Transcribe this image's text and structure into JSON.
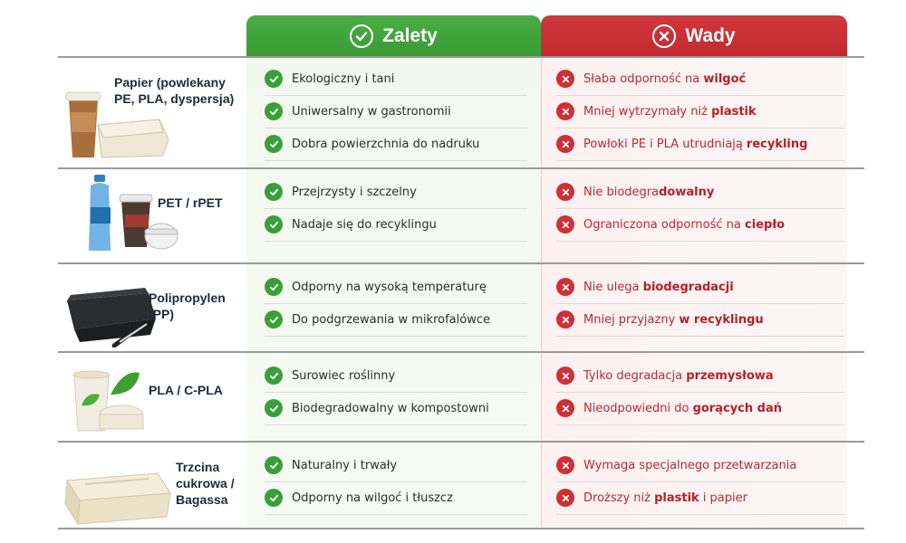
{
  "header": {
    "pros_label": "Zalety",
    "cons_label": "Wady",
    "pros_color": "#3ea338",
    "cons_color": "#c9313a"
  },
  "rows": [
    {
      "material": "Papier (powlekany PE, PLA, dyspersja)",
      "label_lines": [
        "Papier (powlekany",
        "PE, PLA, dyspersja)"
      ],
      "illustration": "paper-cup-and-box",
      "pros": [
        "Ekologiczny i tani",
        "Uniwersalny w gastronomii",
        "Dobra powierzchnia do nadruku"
      ],
      "cons": [
        {
          "pre": "Słaba odporność na ",
          "bold": "wilgoć",
          "post": ""
        },
        {
          "pre": "Mniej wytrzymały niż ",
          "bold": "plastik",
          "post": ""
        },
        {
          "pre": "Powłoki PE i PLA utrudniają ",
          "bold": "recykling",
          "post": ""
        }
      ]
    },
    {
      "material": "PET / rPET",
      "label_lines": [
        "PET / rPET"
      ],
      "illustration": "bottle-and-cups",
      "pros": [
        "Przejrzysty i szczelny",
        "Nadaje się do recyklingu"
      ],
      "cons": [
        {
          "pre": "Nie biodegra",
          "bold": "dowalny",
          "post": ""
        },
        {
          "pre": "Ograniczona odporność na ",
          "bold": "ciepło",
          "post": ""
        }
      ]
    },
    {
      "material": "Polipropylen (PP)",
      "label_lines": [
        "Polipropylen",
        "(PP)"
      ],
      "illustration": "black-container-and-fork",
      "pros": [
        "Odporny na wysoką temperaturę",
        "Do podgrzewania w mikrofalówce"
      ],
      "cons": [
        {
          "pre": "Nie ulega ",
          "bold": "biodegradacji",
          "post": ""
        },
        {
          "pre": "Mniej przyjazny ",
          "bold": "w recyklingu",
          "post": ""
        }
      ]
    },
    {
      "material": "PLA / C-PLA",
      "label_lines": [
        "PLA / C-PLA"
      ],
      "illustration": "leaf-cup-and-container",
      "pros": [
        "Surowiec roślinny",
        "Biodegradowalny w kompostowni"
      ],
      "cons": [
        {
          "pre": "Tylko degradacja ",
          "bold": "przemysłowa",
          "post": ""
        },
        {
          "pre": "Nieodpowiedni do ",
          "bold": "gorących dań",
          "post": ""
        }
      ]
    },
    {
      "material": "Trzcina cukrowa / Bagassa",
      "label_lines": [
        "Trzcina",
        "cukrowa /",
        "Bagassa"
      ],
      "illustration": "bagasse-clamshell",
      "pros": [
        "Naturalny i trwały",
        "Odporny na wilgoć i tłuszcz"
      ],
      "cons": [
        {
          "pre": "Wymaga specjalnego przetwarzania",
          "bold": "",
          "post": ""
        },
        {
          "pre": "Droższy niż ",
          "bold": "plastik",
          "post": " i papier"
        }
      ]
    }
  ]
}
